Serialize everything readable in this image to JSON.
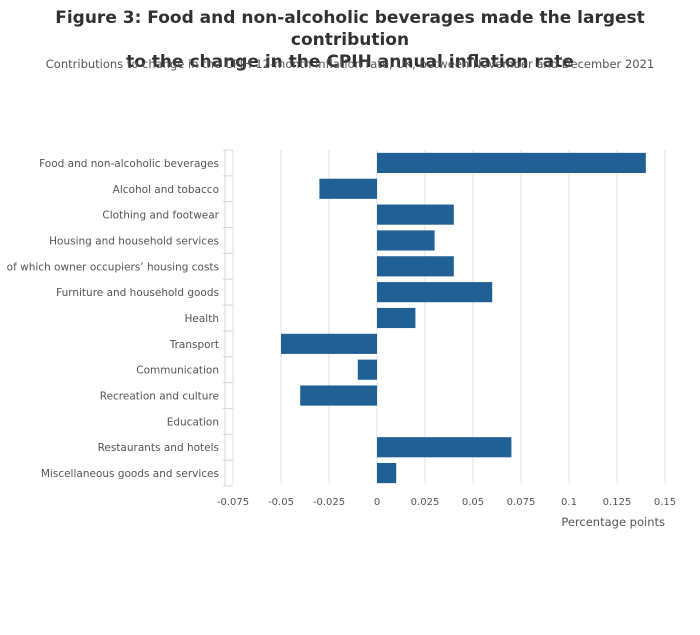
{
  "header": {
    "title_line1": "Figure 3: Food and non-alcoholic beverages made the largest contribution",
    "title_line2": "to the change in the CPIH annual inflation rate",
    "subtitle": "Contributions to change in the CPIH 12-month inflation rate, UK, between November and December 2021"
  },
  "chart_data": {
    "type": "bar",
    "orientation": "horizontal",
    "categories": [
      "Food and non-alcoholic beverages",
      "Alcohol and tobacco",
      "Clothing and footwear",
      "Housing and household services",
      "of which owner occupiers’ housing costs",
      "Furniture and household goods",
      "Health",
      "Transport",
      "Communication",
      "Recreation and culture",
      "Education",
      "Restaurants and hotels",
      "Miscellaneous goods and services"
    ],
    "values": [
      0.14,
      -0.03,
      0.04,
      0.03,
      0.04,
      0.06,
      0.02,
      -0.05,
      -0.01,
      -0.04,
      0,
      0.07,
      0.01
    ],
    "xlabel": "Percentage points",
    "ylabel": "",
    "xlim": [
      -0.075,
      0.15
    ],
    "xticks": [
      "-0.075",
      "-0.05",
      "-0.025",
      "0",
      "0.025",
      "0.05",
      "0.075",
      "0.1",
      "0.125",
      "0.15"
    ],
    "grid": true,
    "bar_color": "#206095"
  }
}
